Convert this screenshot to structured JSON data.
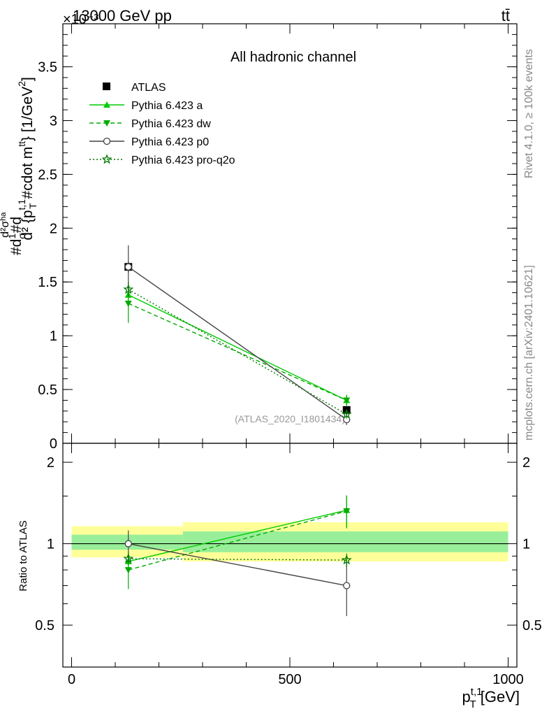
{
  "header": {
    "left_title": "13000 GeV pp",
    "right_title": "tt̄",
    "exponent_label": "×10⁻³",
    "watermark_vertical_1": "Rivet 4.1.0, ≥ 100k events",
    "watermark_vertical_2": "mcplots.cern.ch [arXiv:2401.10621]"
  },
  "chart_data": [
    {
      "type": "line",
      "title": "All hadronic channel",
      "xlabel": "p_T^{t,1} [GeV]",
      "xlabel_main": "p",
      "xlabel_sub": "T",
      "xlabel_sup": "t,1",
      "xlabel_unit": " [GeV]",
      "ylabel": "#d\\frac{1}{\\sigma}#d\\frac{d^2\\sigma^{ha}}{d^2{p_T^{t,1} #cdot m^{tt}}} [1/GeV²]",
      "ylabel_parts": [
        "#d",
        "1",
        "σ",
        "#d",
        "d²σʰᵃ",
        "d² {p",
        "t,1",
        "T",
        " #cdot m",
        "tt",
        "} [1/GeV",
        "2",
        "]"
      ],
      "analysis_label": "(ATLAS_2020_I1801434)",
      "xlim": [
        -20,
        1020
      ],
      "ylim": [
        0,
        3.9
      ],
      "y_ticks": [
        {
          "value": 0.5,
          "label": "0.5"
        },
        {
          "value": 1,
          "label": "1"
        },
        {
          "value": 1.5,
          "label": "1.5"
        },
        {
          "value": 2,
          "label": "2"
        },
        {
          "value": 2.5,
          "label": "2.5"
        },
        {
          "value": 3,
          "label": "3"
        },
        {
          "value": 3.5,
          "label": "3.5"
        },
        {
          "value": 0,
          "label": "0"
        }
      ],
      "x_bins": [
        [
          0,
          260
        ],
        [
          260,
          1000
        ]
      ],
      "x": [
        130,
        630
      ],
      "series": [
        {
          "name": "ATLAS",
          "values": [
            1.64,
            0.31
          ],
          "errors": [
            0.05,
            0.03
          ],
          "color": "#000000",
          "marker": "square",
          "dash": "none"
        },
        {
          "name": "Pythia 6.423 a",
          "values": [
            1.38,
            0.4
          ],
          "errors": [
            0.1,
            0.05
          ],
          "color": "#00cc00",
          "marker": "triangle-up",
          "dash": "solid"
        },
        {
          "name": "Pythia 6.423 dw",
          "values": [
            1.3,
            0.4
          ],
          "errors": [
            0.18,
            0.05
          ],
          "color": "#00aa00",
          "marker": "triangle-down",
          "dash": "dashed"
        },
        {
          "name": "Pythia 6.423 p0",
          "values": [
            1.64,
            0.22
          ],
          "errors": [
            0.2,
            0.05
          ],
          "color": "#444444",
          "marker": "circle-open",
          "dash": "solid"
        },
        {
          "name": "Pythia 6.423 pro-q2o",
          "values": [
            1.43,
            0.27
          ],
          "errors": [
            0.07,
            0.04
          ],
          "color": "#007700",
          "marker": "star-open",
          "dash": "dotted"
        }
      ]
    },
    {
      "type": "line",
      "title": "",
      "ylabel": "Ratio to ATLAS",
      "xlim": [
        -20,
        1020
      ],
      "ylim": [
        0.35,
        2.35
      ],
      "y_ticks": [
        {
          "value": 0.5,
          "label": "0.5"
        },
        {
          "value": 1,
          "label": "1"
        },
        {
          "value": 2,
          "label": "2"
        }
      ],
      "x_ticks": [
        {
          "value": 0,
          "label": "0"
        },
        {
          "value": 500,
          "label": "500"
        },
        {
          "value": 1000,
          "label": "1000"
        }
      ],
      "bands": [
        {
          "x0": 0,
          "x1": 255,
          "outer": [
            0.89,
            1.16
          ],
          "inner": [
            0.95,
            1.08
          ]
        },
        {
          "x0": 255,
          "x1": 1000,
          "outer": [
            0.86,
            1.2
          ],
          "inner": [
            0.93,
            1.11
          ]
        }
      ],
      "x": [
        130,
        630
      ],
      "series": [
        {
          "name": "Pythia 6.423 a",
          "values": [
            0.86,
            1.33
          ],
          "errors": [
            0.07,
            0.18
          ],
          "color": "#00cc00",
          "marker": "triangle-up",
          "dash": "solid"
        },
        {
          "name": "Pythia 6.423 dw",
          "values": [
            0.8,
            1.32
          ],
          "errors": [
            0.12,
            0.18
          ],
          "color": "#00aa00",
          "marker": "triangle-down",
          "dash": "dashed"
        },
        {
          "name": "Pythia 6.423 p0",
          "values": [
            1.0,
            0.7
          ],
          "errors": [
            0.12,
            0.16
          ],
          "color": "#444444",
          "marker": "circle-open",
          "dash": "solid"
        },
        {
          "name": "Pythia 6.423 pro-q2o",
          "values": [
            0.88,
            0.87
          ],
          "errors": [
            0.04,
            0.05
          ],
          "color": "#007700",
          "marker": "star-open",
          "dash": "dotted"
        }
      ]
    }
  ]
}
